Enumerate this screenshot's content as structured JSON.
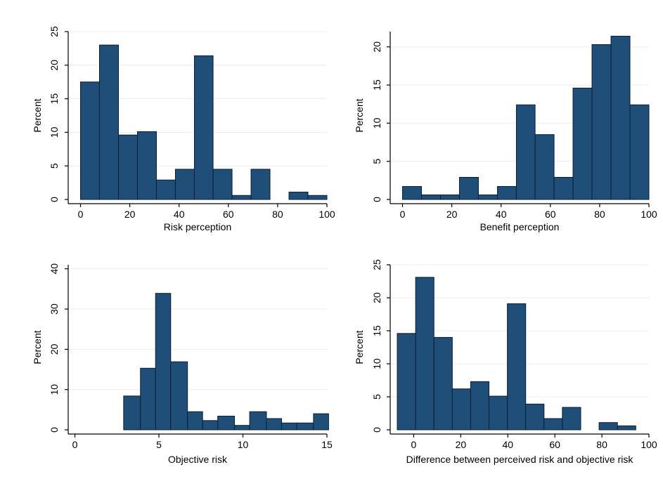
{
  "chart_data": [
    {
      "type": "bar",
      "xlabel": "Risk perception",
      "ylabel": "Percent",
      "xlim": [
        -5,
        100
      ],
      "ylim": [
        0,
        25
      ],
      "xticks": [
        0,
        20,
        40,
        60,
        80,
        100
      ],
      "yticks": [
        0,
        5,
        10,
        15,
        20,
        25
      ],
      "bins": [
        {
          "x0": 0,
          "x1": 7.7,
          "value": 17.5
        },
        {
          "x0": 7.7,
          "x1": 15.4,
          "value": 23.0
        },
        {
          "x0": 15.4,
          "x1": 23.1,
          "value": 9.6
        },
        {
          "x0": 23.1,
          "x1": 30.8,
          "value": 10.1
        },
        {
          "x0": 30.8,
          "x1": 38.5,
          "value": 2.9
        },
        {
          "x0": 38.5,
          "x1": 46.2,
          "value": 4.5
        },
        {
          "x0": 46.2,
          "x1": 53.8,
          "value": 21.4
        },
        {
          "x0": 53.8,
          "x1": 61.5,
          "value": 4.5
        },
        {
          "x0": 61.5,
          "x1": 69.2,
          "value": 0.6
        },
        {
          "x0": 69.2,
          "x1": 76.9,
          "value": 4.5
        },
        {
          "x0": 76.9,
          "x1": 84.6,
          "value": 0
        },
        {
          "x0": 84.6,
          "x1": 92.3,
          "value": 1.1
        },
        {
          "x0": 92.3,
          "x1": 100,
          "value": 0.6
        }
      ]
    },
    {
      "type": "bar",
      "xlabel": "Benefit perception",
      "ylabel": "Percent",
      "xlim": [
        -5,
        100
      ],
      "ylim": [
        0,
        22
      ],
      "xticks": [
        0,
        20,
        40,
        60,
        80,
        100
      ],
      "yticks": [
        0,
        5,
        10,
        15,
        20
      ],
      "bins": [
        {
          "x0": 0,
          "x1": 7.7,
          "value": 1.7
        },
        {
          "x0": 7.7,
          "x1": 15.4,
          "value": 0.6
        },
        {
          "x0": 15.4,
          "x1": 23.1,
          "value": 0.6
        },
        {
          "x0": 23.1,
          "x1": 30.8,
          "value": 2.9
        },
        {
          "x0": 30.8,
          "x1": 38.5,
          "value": 0.6
        },
        {
          "x0": 38.5,
          "x1": 46.2,
          "value": 1.7
        },
        {
          "x0": 46.2,
          "x1": 53.8,
          "value": 12.4
        },
        {
          "x0": 53.8,
          "x1": 61.5,
          "value": 8.5
        },
        {
          "x0": 61.5,
          "x1": 69.2,
          "value": 2.9
        },
        {
          "x0": 69.2,
          "x1": 76.9,
          "value": 14.6
        },
        {
          "x0": 76.9,
          "x1": 84.6,
          "value": 20.3
        },
        {
          "x0": 84.6,
          "x1": 92.3,
          "value": 21.4
        },
        {
          "x0": 92.3,
          "x1": 100,
          "value": 12.4
        }
      ]
    },
    {
      "type": "bar",
      "xlabel": "Objective risk",
      "ylabel": "Percent",
      "xlim": [
        -0.4,
        15
      ],
      "ylim": [
        0,
        41
      ],
      "xticks": [
        0,
        5,
        10,
        15
      ],
      "yticks": [
        0,
        10,
        20,
        30,
        40
      ],
      "bins": [
        {
          "x0": 2.9,
          "x1": 3.9,
          "value": 8.4
        },
        {
          "x0": 3.9,
          "x1": 4.8,
          "value": 15.3
        },
        {
          "x0": 4.8,
          "x1": 5.7,
          "value": 33.9
        },
        {
          "x0": 5.7,
          "x1": 6.7,
          "value": 16.9
        },
        {
          "x0": 6.7,
          "x1": 7.6,
          "value": 4.5
        },
        {
          "x0": 7.6,
          "x1": 8.5,
          "value": 2.3
        },
        {
          "x0": 8.5,
          "x1": 9.5,
          "value": 3.4
        },
        {
          "x0": 9.5,
          "x1": 10.4,
          "value": 1.1
        },
        {
          "x0": 10.4,
          "x1": 11.4,
          "value": 4.5
        },
        {
          "x0": 11.4,
          "x1": 12.3,
          "value": 2.8
        },
        {
          "x0": 12.3,
          "x1": 13.2,
          "value": 1.7
        },
        {
          "x0": 13.2,
          "x1": 14.2,
          "value": 1.7
        },
        {
          "x0": 14.2,
          "x1": 15.1,
          "value": 4.0
        }
      ]
    },
    {
      "type": "bar",
      "xlabel": "Difference between perceived risk and objective risk",
      "ylabel": "Percent",
      "xlim": [
        -10,
        100
      ],
      "ylim": [
        0,
        25
      ],
      "xticks": [
        0,
        20,
        40,
        60,
        80,
        100
      ],
      "yticks": [
        0,
        5,
        10,
        15,
        20,
        25
      ],
      "bins": [
        {
          "x0": -7,
          "x1": 0.8,
          "value": 14.6
        },
        {
          "x0": 0.8,
          "x1": 8.6,
          "value": 23.1
        },
        {
          "x0": 8.6,
          "x1": 16.4,
          "value": 14.0
        },
        {
          "x0": 16.4,
          "x1": 24.2,
          "value": 6.2
        },
        {
          "x0": 24.2,
          "x1": 32,
          "value": 7.3
        },
        {
          "x0": 32,
          "x1": 39.8,
          "value": 5.1
        },
        {
          "x0": 39.8,
          "x1": 47.6,
          "value": 19.1
        },
        {
          "x0": 47.6,
          "x1": 55.4,
          "value": 3.9
        },
        {
          "x0": 55.4,
          "x1": 63.2,
          "value": 1.7
        },
        {
          "x0": 63.2,
          "x1": 71,
          "value": 3.4
        },
        {
          "x0": 71,
          "x1": 78.8,
          "value": 0
        },
        {
          "x0": 78.8,
          "x1": 86.6,
          "value": 1.1
        },
        {
          "x0": 86.6,
          "x1": 94.4,
          "value": 0.6
        }
      ]
    }
  ]
}
